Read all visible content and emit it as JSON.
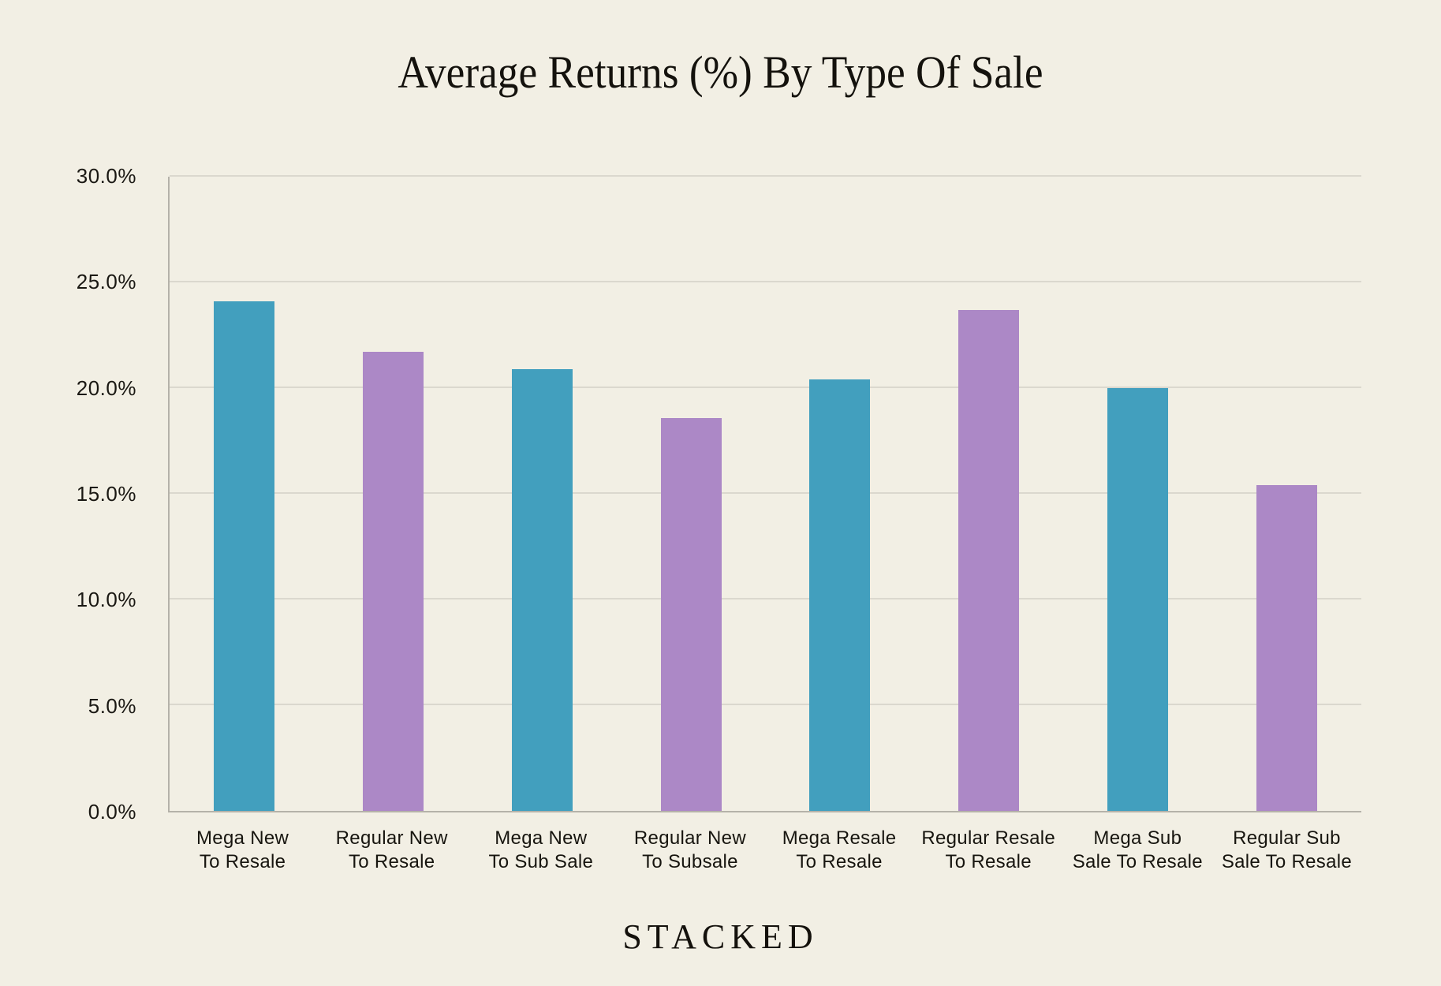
{
  "page": {
    "background": "#F2EFE4",
    "footer_brand": "STACKED"
  },
  "chart_data": {
    "type": "bar",
    "title": "Average Returns (%) By Type Of Sale",
    "xlabel": "",
    "ylabel": "",
    "unit": "%",
    "ylim": [
      0,
      30
    ],
    "grid": true,
    "legend": "none",
    "axis_color": "#B5B2A9",
    "gridline_color": "#DBD8CE",
    "yticks": [
      {
        "value": 0,
        "label": "0.0%"
      },
      {
        "value": 5,
        "label": "5.0%"
      },
      {
        "value": 10,
        "label": "10.0%"
      },
      {
        "value": 15,
        "label": "15.0%"
      },
      {
        "value": 20,
        "label": "20.0%"
      },
      {
        "value": 25,
        "label": "25.0%"
      },
      {
        "value": 30,
        "label": "30.0%"
      }
    ],
    "bars": [
      {
        "category": "Mega New To Resale",
        "label_lines": [
          "Mega New",
          "To Resale"
        ],
        "value": 24.1,
        "color": "#429FBE"
      },
      {
        "category": "Regular New To Resale",
        "label_lines": [
          "Regular New",
          "To Resale"
        ],
        "value": 21.7,
        "color": "#AC88C6"
      },
      {
        "category": "Mega New To Sub Sale",
        "label_lines": [
          "Mega New",
          "To Sub Sale"
        ],
        "value": 20.9,
        "color": "#429FBE"
      },
      {
        "category": "Regular New To Subsale",
        "label_lines": [
          "Regular New",
          "To Subsale"
        ],
        "value": 18.6,
        "color": "#AC88C6"
      },
      {
        "category": "Mega Resale To Resale",
        "label_lines": [
          "Mega Resale",
          "To Resale"
        ],
        "value": 20.4,
        "color": "#429FBE"
      },
      {
        "category": "Regular Resale To Resale",
        "label_lines": [
          "Regular Resale",
          "To Resale"
        ],
        "value": 23.7,
        "color": "#AC88C6"
      },
      {
        "category": "Mega Sub Sale To Resale",
        "label_lines": [
          "Mega Sub",
          "Sale To Resale"
        ],
        "value": 20.0,
        "color": "#429FBE"
      },
      {
        "category": "Regular Sub Sale To Resale",
        "label_lines": [
          "Regular Sub",
          "Sale To Resale"
        ],
        "value": 15.4,
        "color": "#AC88C6"
      }
    ]
  }
}
